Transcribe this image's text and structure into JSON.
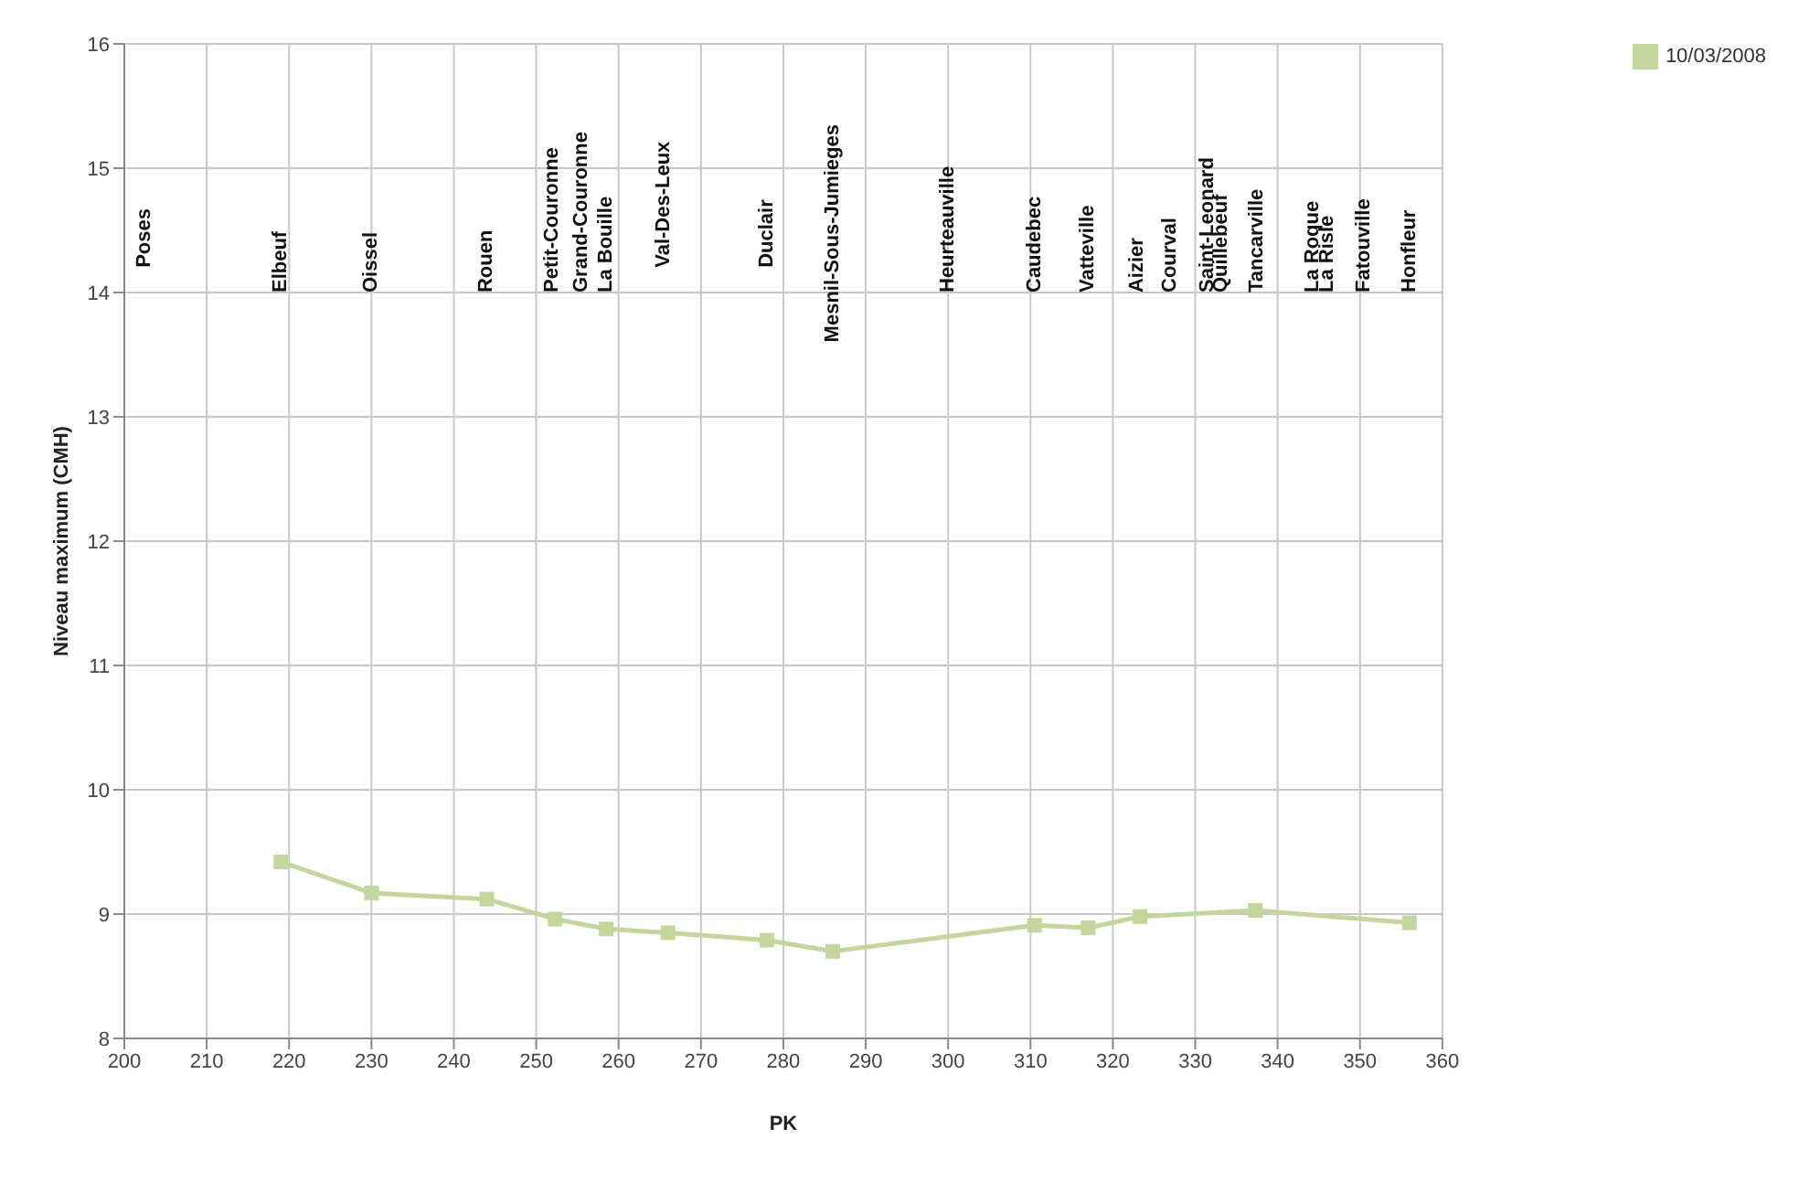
{
  "chart_data": {
    "type": "line",
    "xlabel": "PK",
    "ylabel": "Niveau maximum (CMH)",
    "xlim": [
      200,
      360
    ],
    "xticks": [
      200,
      210,
      220,
      230,
      240,
      250,
      260,
      270,
      280,
      290,
      300,
      310,
      320,
      330,
      340,
      350,
      360
    ],
    "ylim": [
      8,
      16
    ],
    "yticks": [
      8,
      9,
      10,
      11,
      12,
      13,
      14,
      15,
      16
    ],
    "grid": true,
    "legend": "top right",
    "marker": "square",
    "line_style": "solid",
    "series": [
      {
        "name": "10/03/2008",
        "color": "#c3d69b",
        "x": [
          219,
          230,
          244,
          252.3,
          258.5,
          266,
          278,
          286,
          310.5,
          317,
          323.3,
          337.3,
          356
        ],
        "values": [
          9.42,
          9.17,
          9.12,
          8.96,
          8.88,
          8.85,
          8.79,
          8.7,
          8.91,
          8.89,
          8.98,
          9.03,
          8.93
        ]
      }
    ],
    "annotations": [
      "Poses",
      "Elbeuf",
      "Oissel",
      "Rouen",
      "Petit-Couronne",
      "Grand-Couronne",
      "La Bouille",
      "Val-Des-Leux",
      "Duclair",
      "Mesnil-Sous-Jumieges",
      "Heurteauville",
      "Caudebec",
      "Vatteville",
      "Aizier",
      "Courval",
      "Saint-Leonard",
      "Quillebeuf",
      "Tancarville",
      "La Roque",
      "La Risle",
      "Fatouville",
      "Honfleur"
    ]
  }
}
